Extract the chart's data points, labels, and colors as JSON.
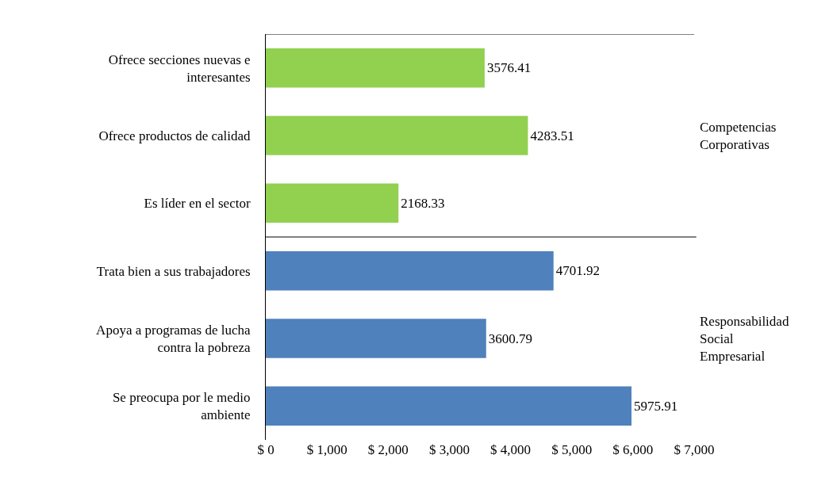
{
  "chart_data": {
    "type": "bar",
    "orientation": "horizontal",
    "categories": [
      "Ofrece secciones nuevas e\ninteresantes",
      "Ofrece productos de calidad",
      "Es líder en el sector",
      "Trata bien a sus trabajadores",
      "Apoya a programas de lucha\ncontra la pobreza",
      "Se preocupa por le medio\nambiente"
    ],
    "values": [
      3576.41,
      4283.51,
      2168.33,
      4701.92,
      3600.79,
      5975.91
    ],
    "colors": [
      "#92d050",
      "#92d050",
      "#92d050",
      "#4f81bd",
      "#4f81bd",
      "#4f81bd"
    ],
    "data_labels": true,
    "xlim": [
      0,
      7000
    ],
    "xticks": [
      {
        "value": 0,
        "label": "$ 0"
      },
      {
        "value": 1000,
        "label": "$ 1,000"
      },
      {
        "value": 2000,
        "label": "$ 2,000"
      },
      {
        "value": 3000,
        "label": "$ 3,000"
      },
      {
        "value": 4000,
        "label": "$ 4,000"
      },
      {
        "value": 5000,
        "label": "$ 5,000"
      },
      {
        "value": 6000,
        "label": "$ 6,000"
      },
      {
        "value": 7000,
        "label": "$ 7,000"
      }
    ],
    "grid": false,
    "annotations": [
      "Competencias\nCorporativas",
      "Responsabilidad\nSocial\nEmpresarial"
    ]
  }
}
